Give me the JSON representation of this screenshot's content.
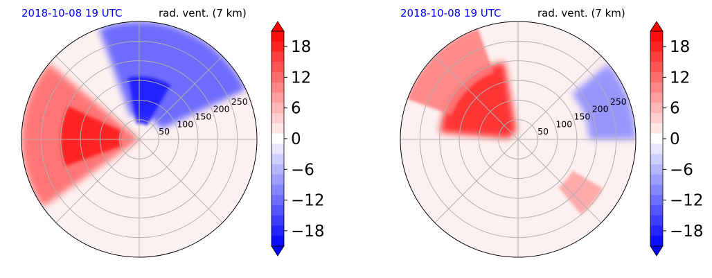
{
  "chart_data": {
    "type": "heatmap",
    "projection": "polar",
    "panels": [
      {
        "date_label": "2018-10-08 19 UTC",
        "title": "rad. vent. (7 km)",
        "radial_ticks": [
          "50",
          "100",
          "150",
          "200",
          "250"
        ],
        "radial_values": [
          50,
          100,
          150,
          200,
          250
        ],
        "r_max": 300,
        "features": [
          {
            "sign": "negative",
            "sector_deg": [
              25,
              110
            ],
            "r": [
              60,
              300
            ],
            "value": -14
          },
          {
            "sign": "negative",
            "sector_deg": [
              60,
              100
            ],
            "r": [
              40,
              160
            ],
            "value": -19
          },
          {
            "sign": "positive",
            "sector_deg": [
              140,
              215
            ],
            "r": [
              0,
              300
            ],
            "value": 13
          },
          {
            "sign": "positive",
            "sector_deg": [
              155,
              200
            ],
            "r": [
              50,
              200
            ],
            "value": 19
          }
        ]
      },
      {
        "date_label": "2018-10-08 19 UTC",
        "title": "rad. vent. (7 km)",
        "radial_ticks": [
          "50",
          "100",
          "150",
          "200",
          "250"
        ],
        "radial_values": [
          50,
          100,
          150,
          200,
          250
        ],
        "r_max": 300,
        "features": [
          {
            "sign": "positive",
            "sector_deg": [
              100,
              175
            ],
            "r": [
              20,
              200
            ],
            "value": 19
          },
          {
            "sign": "positive",
            "sector_deg": [
              110,
              160
            ],
            "r": [
              180,
              300
            ],
            "value": 11
          },
          {
            "sign": "negative",
            "sector_deg": [
              0,
              40
            ],
            "r": [
              180,
              300
            ],
            "value": -10
          },
          {
            "sign": "positive",
            "sector_deg": [
              310,
              330
            ],
            "r": [
              160,
              250
            ],
            "value": 8
          }
        ]
      }
    ],
    "colorbar": {
      "ticks": [
        18,
        12,
        6,
        0,
        -6,
        -12,
        -18
      ],
      "tick_labels": [
        "18",
        "12",
        "6",
        "0",
        "−6",
        "−12",
        "−18"
      ],
      "vmin": -21,
      "vmax": 21,
      "levels": 21,
      "extend": "both",
      "colormap": "bwr",
      "colors": {
        "max": "#ff0000",
        "mid": "#ffffff",
        "min": "#0000ff"
      }
    }
  }
}
